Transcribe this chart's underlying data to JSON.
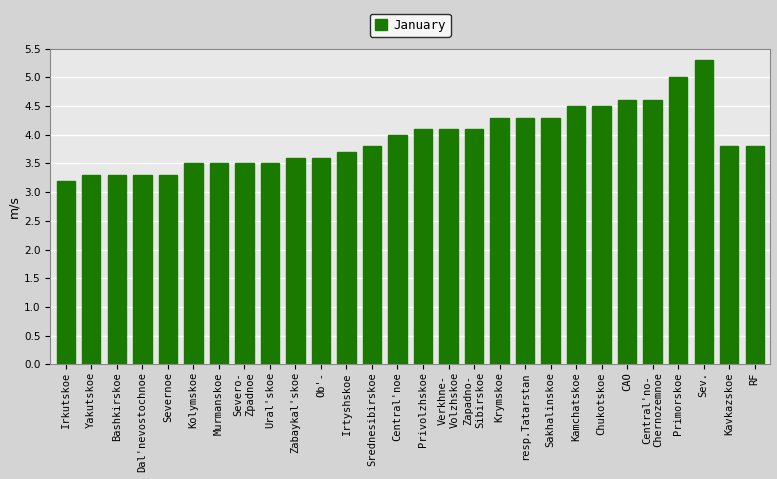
{
  "categories": [
    "Irkutskoe",
    "Yakutskoe",
    "Bashkirskoe",
    "Dal'nevostochnoe",
    "Severnoe",
    "Kolymskoe",
    "Murmanskoe",
    "Severo-\nZpadnoe",
    "Ural'skoe",
    "Zabaykal'skoe",
    "Ob'-",
    "Irtyshskoe",
    "Srednesibirskoe",
    "Central'noe",
    "Privolzhskoe",
    "Verkhne-\nVolzhskoe",
    "Zapadno-\nSibirskoe",
    "Krymskoe",
    "resp.Tatarstan",
    "Sakhalinskoe",
    "Kamchatskoe",
    "Chukotskoe",
    "CAO",
    "Central'no-\nChernozemnoe",
    "Primorskoe",
    "Sev.",
    "Kavkazskoe",
    "RF"
  ],
  "values": [
    3.2,
    3.3,
    3.3,
    3.3,
    3.3,
    3.5,
    3.5,
    3.5,
    3.5,
    3.6,
    3.6,
    3.7,
    3.8,
    4.0,
    4.1,
    4.1,
    4.1,
    4.3,
    4.3,
    4.3,
    4.5,
    4.5,
    4.6,
    4.6,
    5.0,
    5.3,
    3.8,
    3.8
  ],
  "bar_color": "#1a7a00",
  "legend_label": "January",
  "ylabel": "m/s",
  "ylim": [
    0,
    5.5
  ],
  "yticks": [
    0,
    0.5,
    1.0,
    1.5,
    2.0,
    2.5,
    3.0,
    3.5,
    4.0,
    4.5,
    5.0,
    5.5
  ],
  "plot_bg_color": "#e8e8e8",
  "fig_bg_color": "#d4d4d4",
  "grid_color": "#ffffff",
  "tick_fontsize": 7.5,
  "ylabel_fontsize": 9,
  "legend_fontsize": 9
}
